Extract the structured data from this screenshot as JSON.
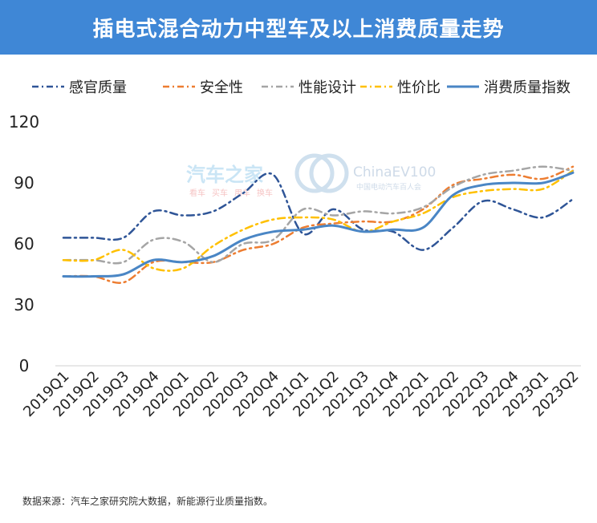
{
  "header": {
    "title": "插电式混合动力中型车及以上消费质量走势"
  },
  "footer": {
    "source": "数据来源：汽车之家研究院大数据，新能源行业质量指数。"
  },
  "watermark": {
    "brand_a": "汽车之家",
    "brand_b_prefix": "China",
    "brand_b_suffix": "EV100",
    "brand_b_sub": "中国电动汽车百人会",
    "sub_items": [
      "看车",
      "买车",
      "用车",
      "换车"
    ]
  },
  "colors": {
    "header_bg": "#3f87d6",
    "series": [
      "#2f5597",
      "#ed7d31",
      "#a5a5a5",
      "#ffc000",
      "#4a86c5"
    ]
  },
  "chart_data": {
    "type": "line",
    "title": "",
    "xlabel": "",
    "ylabel": "",
    "ylim": [
      0,
      120
    ],
    "yticks": [
      0,
      30,
      60,
      90,
      120
    ],
    "grid": false,
    "legend_position": "top",
    "categories": [
      "2019Q1",
      "2019Q2",
      "2019Q3",
      "2019Q4",
      "2020Q1",
      "2020Q2",
      "2020Q3",
      "2020Q4",
      "2021Q1",
      "2021Q2",
      "2021Q3",
      "2021Q4",
      "2022Q1",
      "2022Q2",
      "2022Q3",
      "2022Q4",
      "2023Q1",
      "2023Q2"
    ],
    "series": [
      {
        "name": "感官质量",
        "style": "dashdot",
        "values": [
          63,
          63,
          63,
          76,
          74,
          76,
          85,
          94,
          65,
          77,
          67,
          66,
          57,
          68,
          81,
          77,
          73,
          82
        ]
      },
      {
        "name": "安全性",
        "style": "dashdot",
        "values": [
          44,
          44,
          41,
          51,
          51,
          51,
          57,
          60,
          68,
          70,
          71,
          71,
          77,
          89,
          92,
          94,
          92,
          98
        ]
      },
      {
        "name": "性能设计",
        "style": "dashdot",
        "values": [
          52,
          52,
          51,
          62,
          61,
          51,
          60,
          62,
          77,
          74,
          76,
          75,
          78,
          88,
          94,
          96,
          98,
          96
        ]
      },
      {
        "name": "性价比",
        "style": "dashdot",
        "values": [
          52,
          52,
          57,
          48,
          48,
          59,
          67,
          72,
          73,
          72,
          66,
          71,
          75,
          83,
          86,
          87,
          87,
          96
        ]
      },
      {
        "name": "消费质量指数",
        "style": "solid",
        "values": [
          44,
          44,
          45,
          52,
          51,
          54,
          62,
          66,
          67,
          69,
          66,
          67,
          68,
          84,
          89,
          90,
          90,
          95
        ]
      }
    ]
  }
}
